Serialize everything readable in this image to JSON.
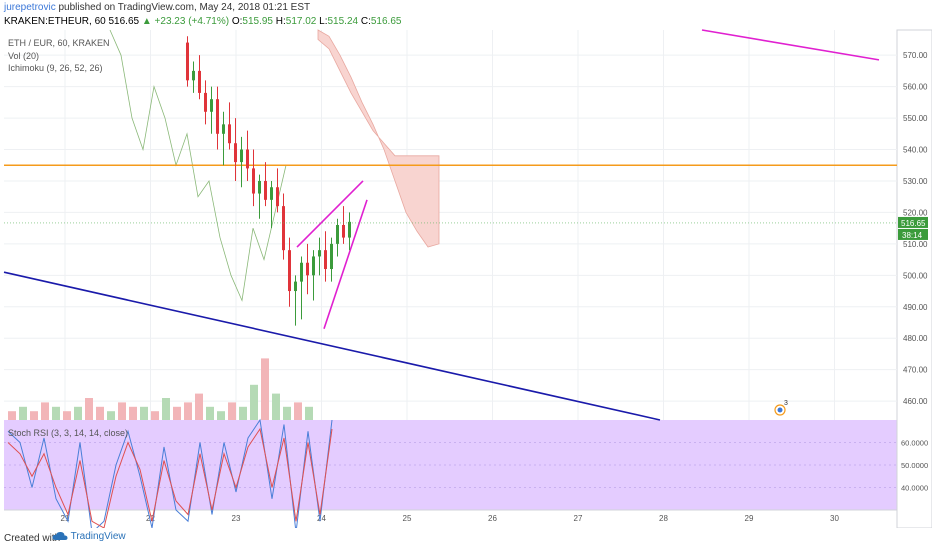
{
  "header": {
    "author": "jurepetrovic",
    "published": "published on TradingView.com, May 24, 2018 01:21 EST",
    "symbol": "KRAKEN:ETHEUR, 60",
    "last": "516.65",
    "change": "+23.23 (+4.71%)",
    "o_label": "O:",
    "o_val": "515.95",
    "h_label": "H:",
    "h_val": "517.02",
    "l_label": "L:",
    "l_val": "515.24",
    "c_label": "C:",
    "c_val": "516.65"
  },
  "legend": {
    "title": "ETH / EUR, 60, KRAKEN",
    "vol": "Vol (20)",
    "ichimoku": "Ichimoku (9, 26, 52, 26)",
    "stoch": "Stoch RSI (3, 3, 14, 14, close)"
  },
  "footer": {
    "created": "Created with",
    "brand": "TradingView"
  },
  "colors": {
    "up": "#3b9b3b",
    "down": "#e0343a",
    "magenta": "#e020d0",
    "blue": "#1a1aaa",
    "orange": "#f59b1b",
    "cloud": "#f8d4d0",
    "stoch_bg": "#e4ccff",
    "grid": "#eef0f3"
  },
  "chart_data": {
    "type": "candlestick",
    "x_ticks": [
      "21",
      "22",
      "23",
      "24",
      "25",
      "26",
      "27",
      "28",
      "29",
      "30"
    ],
    "price_ticks": [
      570,
      560,
      550,
      540,
      530,
      520,
      510,
      500,
      490,
      480,
      470,
      460
    ],
    "ylim": [
      454,
      578
    ],
    "price_labels": {
      "last": "516.65",
      "countdown": "38:14"
    },
    "stoch_ticks": [
      "60.0000",
      "50.0000",
      "40.0000"
    ],
    "stoch_ylim": [
      30,
      70
    ],
    "horizontal_level": 535,
    "event_badge": "3",
    "candles": [
      [
        574,
        576,
        560,
        562
      ],
      [
        562,
        568,
        558,
        565
      ],
      [
        565,
        570,
        556,
        558
      ],
      [
        558,
        562,
        548,
        552
      ],
      [
        552,
        560,
        545,
        556
      ],
      [
        556,
        560,
        540,
        545
      ],
      [
        545,
        552,
        535,
        548
      ],
      [
        548,
        555,
        540,
        542
      ],
      [
        542,
        550,
        530,
        536
      ],
      [
        536,
        544,
        528,
        540
      ],
      [
        540,
        546,
        530,
        534
      ],
      [
        534,
        540,
        522,
        526
      ],
      [
        526,
        532,
        518,
        530
      ],
      [
        530,
        536,
        522,
        524
      ],
      [
        524,
        530,
        515,
        528
      ],
      [
        528,
        534,
        520,
        522
      ],
      [
        522,
        526,
        505,
        508
      ],
      [
        508,
        512,
        490,
        495
      ],
      [
        495,
        500,
        484,
        498
      ],
      [
        498,
        506,
        486,
        504
      ],
      [
        504,
        510,
        494,
        500
      ],
      [
        500,
        508,
        492,
        506
      ],
      [
        506,
        512,
        500,
        508
      ],
      [
        508,
        514,
        498,
        502
      ],
      [
        502,
        512,
        498,
        510
      ],
      [
        510,
        518,
        506,
        516
      ],
      [
        516,
        522,
        510,
        512
      ],
      [
        512,
        520,
        508,
        517
      ]
    ],
    "volume": [
      2,
      3,
      2,
      4,
      3,
      2,
      3,
      5,
      3,
      2,
      4,
      3,
      3,
      2,
      5,
      3,
      4,
      6,
      3,
      2,
      4,
      3,
      8,
      14,
      6,
      3,
      4,
      3
    ]
  }
}
